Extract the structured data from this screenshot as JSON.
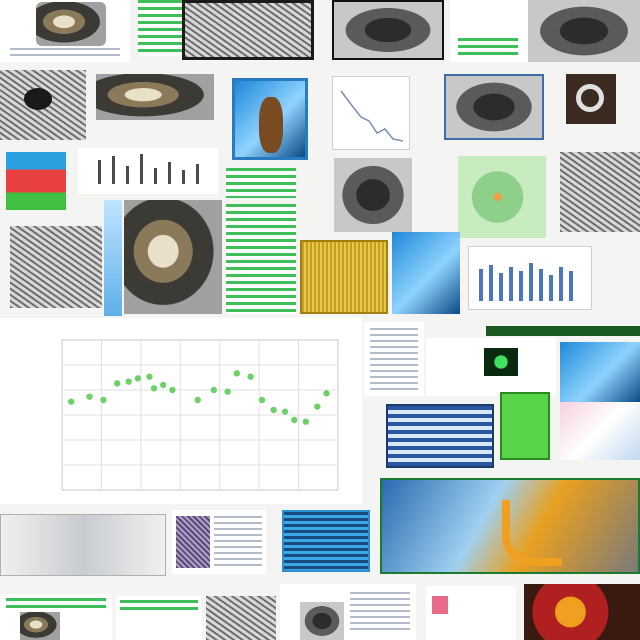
{
  "chart_data": {
    "type": "scatter",
    "title": "",
    "xlabel": "",
    "ylabel": "",
    "xlim": [
      0,
      12
    ],
    "ylim": [
      0,
      9
    ],
    "grid": true,
    "series": [
      {
        "color": "#6fd06a",
        "points": [
          [
            0.4,
            5.3
          ],
          [
            1.2,
            5.6
          ],
          [
            1.8,
            5.4
          ],
          [
            2.4,
            6.4
          ],
          [
            2.9,
            6.5
          ],
          [
            3.3,
            6.7
          ],
          [
            3.8,
            6.8
          ],
          [
            4.0,
            6.1
          ],
          [
            4.4,
            6.3
          ],
          [
            4.8,
            6.0
          ],
          [
            5.9,
            5.4
          ],
          [
            6.6,
            6.0
          ],
          [
            7.2,
            5.9
          ],
          [
            7.6,
            7.0
          ],
          [
            8.2,
            6.8
          ],
          [
            8.7,
            5.4
          ],
          [
            9.2,
            4.8
          ],
          [
            9.7,
            4.7
          ],
          [
            10.1,
            4.2
          ],
          [
            10.6,
            4.1
          ],
          [
            11.1,
            5.0
          ],
          [
            11.5,
            5.8
          ]
        ]
      }
    ]
  },
  "icons": {
    "collage": "collage-icon"
  }
}
